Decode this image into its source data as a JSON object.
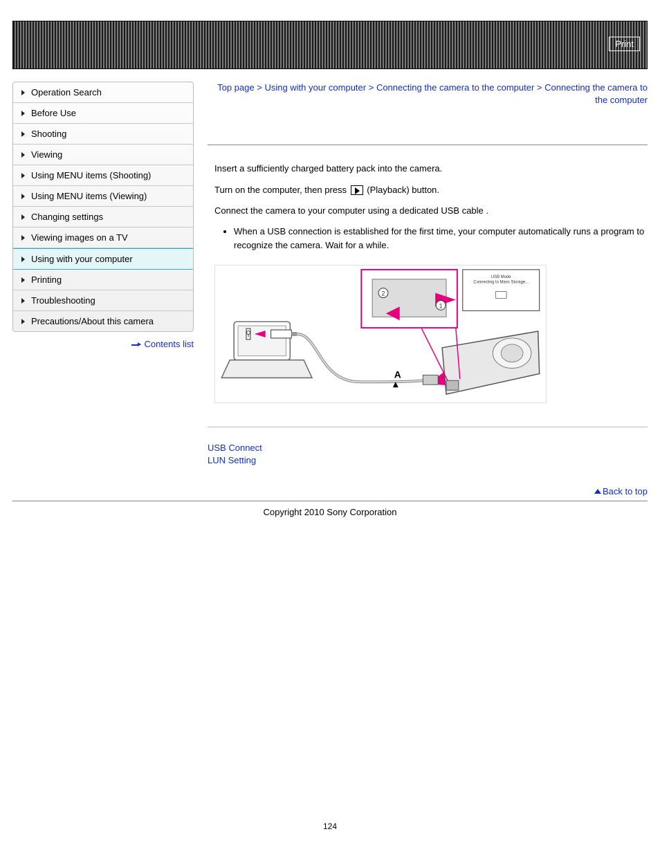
{
  "header": {
    "print_label": "Print"
  },
  "sidebar": {
    "items": [
      {
        "label": "Operation Search",
        "active": false
      },
      {
        "label": "Before Use",
        "active": false
      },
      {
        "label": "Shooting",
        "active": false
      },
      {
        "label": "Viewing",
        "active": false
      },
      {
        "label": "Using MENU items (Shooting)",
        "active": false
      },
      {
        "label": "Using MENU items (Viewing)",
        "active": false
      },
      {
        "label": "Changing settings",
        "active": false
      },
      {
        "label": "Viewing images on a TV",
        "active": false
      },
      {
        "label": "Using with your computer",
        "active": true
      },
      {
        "label": "Printing",
        "active": false
      },
      {
        "label": "Troubleshooting",
        "active": false
      },
      {
        "label": "Precautions/About this camera",
        "active": false
      }
    ],
    "contents_list_label": "Contents list"
  },
  "breadcrumb": {
    "parts": [
      {
        "text": "Top page",
        "link": true
      },
      {
        "text": "Using with your computer",
        "link": true
      },
      {
        "text": "Connecting the camera to the computer",
        "link": true
      },
      {
        "text": "Connecting the camera to the computer",
        "link": false
      }
    ],
    "sep": " > "
  },
  "content": {
    "step1": "Insert a sufficiently charged battery pack into the camera.",
    "step2_before": "Turn on the computer, then press ",
    "step2_after": " (Playback) button.",
    "step3": "Connect the camera to your computer using a dedicated USB cable       .",
    "bullet1": "When a USB connection is established for the first time, your computer automatically runs a program to recognize the camera. Wait for a while.",
    "diagram": {
      "screen_line1": "USB Mode",
      "screen_line2": "Connecting to Mass Storage...",
      "marker_a": "A",
      "accent_color": "#e6007e",
      "gray": "#9a9a9a",
      "dark": "#3a3a3a"
    }
  },
  "links": {
    "usb_connect": "USB Connect",
    "lun_setting": "LUN Setting"
  },
  "back_to_top": "Back to top",
  "copyright": "Copyright 2010 Sony Corporation",
  "page_number": "124",
  "colors": {
    "link": "#1030c0",
    "active_bg": "#e4f6f8",
    "active_border": "#3aa7c4"
  }
}
